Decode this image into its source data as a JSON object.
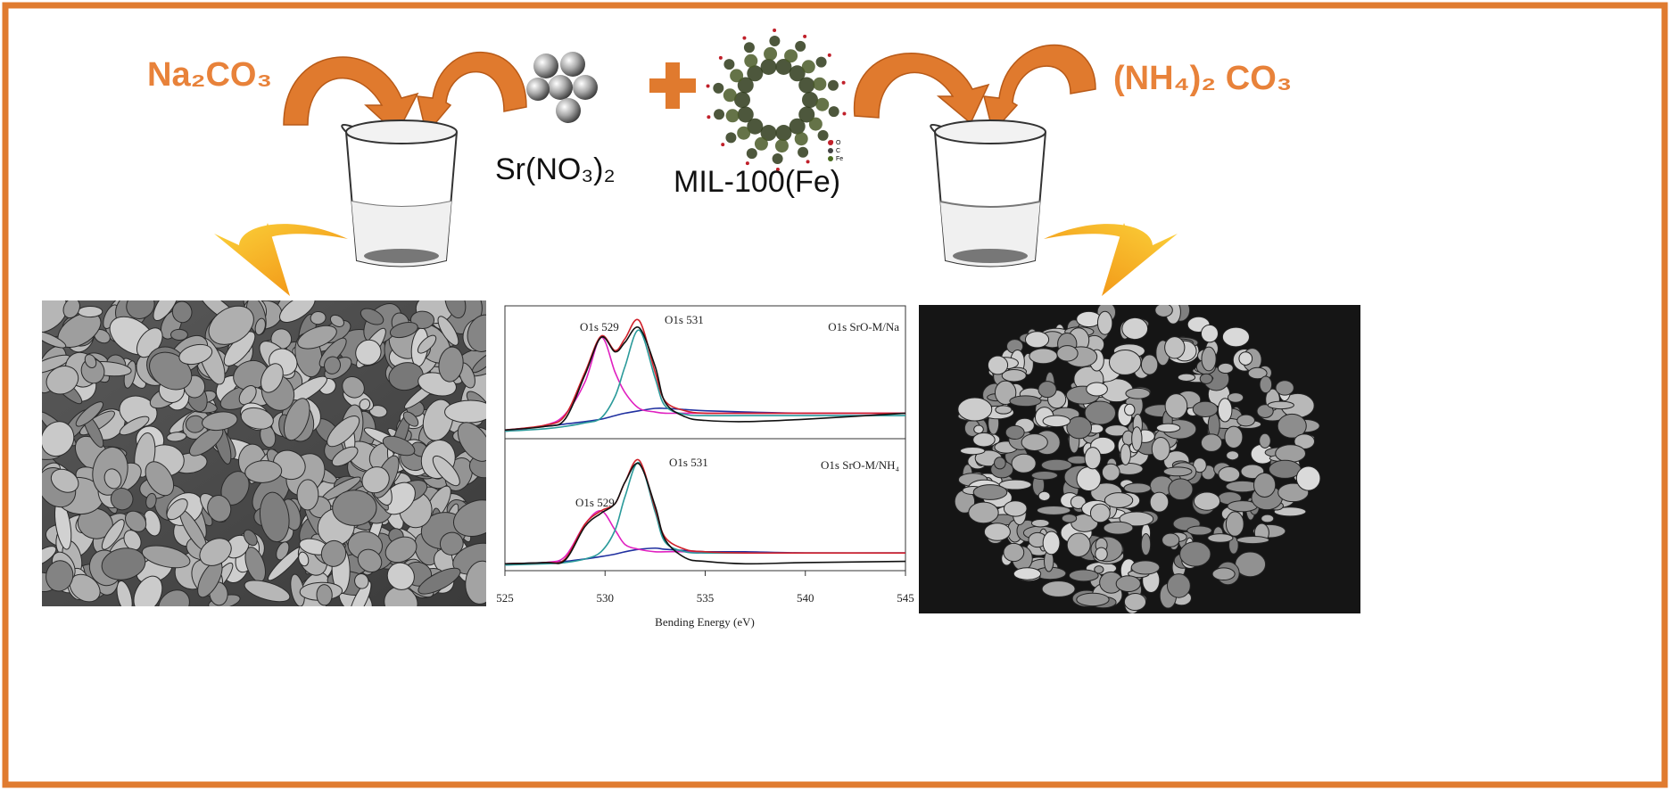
{
  "reagents": {
    "left": "Na₂CO₃",
    "right": "(NH₄)₂ CO₃"
  },
  "precursor": "Sr(NO₃)₂",
  "mof": {
    "label": "MIL-100(Fe)",
    "legend": [
      "O",
      "C",
      "Fe"
    ]
  },
  "chart_data": {
    "type": "line",
    "x_label": "Bending Energy (eV)",
    "xlim": [
      525,
      545
    ],
    "xticks": [
      525,
      530,
      535,
      540,
      545
    ],
    "ylim": [
      0,
      100
    ],
    "x": [
      525,
      527,
      528,
      529,
      529.8,
      530.5,
      531,
      531.7,
      532.5,
      533,
      534,
      535,
      537,
      540,
      545
    ],
    "panels": [
      {
        "title": "O1s SrO-M/Na",
        "peak_labels": [
          "O1s 529",
          "O1s 531"
        ],
        "series": [
          {
            "color": "#2030a0",
            "values": [
              2,
              5,
              7,
              9,
              11,
              14,
              16,
              18,
              20,
              20,
              19,
              18,
              17,
              16,
              16
            ]
          },
          {
            "color": "#e020c0",
            "values": [
              1,
              6,
              15,
              42,
              79,
              50,
              33,
              20,
              17,
              16,
              16,
              16,
              16,
              16,
              16
            ]
          },
          {
            "color": "#2a9a9a",
            "values": [
              1,
              3,
              5,
              8,
              12,
              30,
              55,
              85,
              45,
              22,
              15,
              14,
              14,
              14,
              14
            ]
          },
          {
            "color": "#d0202a",
            "values": [
              2,
              6,
              14,
              50,
              80,
              68,
              78,
              93,
              50,
              26,
              18,
              16,
              16,
              16,
              16
            ]
          },
          {
            "color": "#111111",
            "values": [
              2,
              5,
              11,
              48,
              79,
              67,
              75,
              87,
              55,
              25,
              13,
              10,
              9,
              11,
              16
            ]
          }
        ]
      },
      {
        "title": "O1s SrO-M/NH₄",
        "peak_labels": [
          "O1s 529",
          "O1s 531"
        ],
        "series": [
          {
            "color": "#2030a0",
            "values": [
              2,
              3,
              4,
              6,
              8,
              10,
              12,
              14,
              15,
              14,
              13,
              12,
              12,
              11,
              11
            ]
          },
          {
            "color": "#e020c0",
            "values": [
              1,
              3,
              8,
              35,
              46,
              30,
              18,
              14,
              12,
              12,
              12,
              11,
              11,
              11,
              11
            ]
          },
          {
            "color": "#2a9a9a",
            "values": [
              1,
              2,
              3,
              6,
              12,
              30,
              58,
              86,
              45,
              20,
              12,
              11,
              11,
              11,
              11
            ]
          },
          {
            "color": "#d0202a",
            "values": [
              2,
              3,
              6,
              35,
              46,
              52,
              70,
              88,
              48,
              24,
              14,
              12,
              11,
              11,
              11
            ]
          },
          {
            "color": "#111111",
            "values": [
              2,
              3,
              5,
              33,
              44,
              52,
              70,
              85,
              50,
              22,
              7,
              4,
              2,
              3,
              4
            ]
          }
        ]
      }
    ]
  }
}
